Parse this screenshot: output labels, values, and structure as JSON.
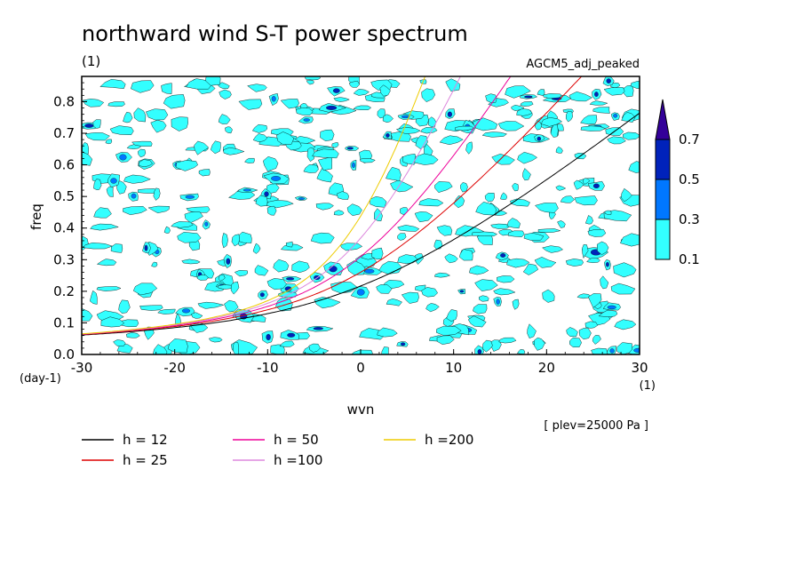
{
  "chart_data": {
    "type": "heatmap",
    "title": "northward wind S-T power spectrum",
    "title_unit": "(1)",
    "subtitle": "AGCM5_adj_peaked",
    "xlabel": "wvn",
    "x_unit": "(1)",
    "ylabel": "freq",
    "y_unit": "(day-1)",
    "xlim": [
      -30,
      30
    ],
    "ylim": [
      0,
      0.88
    ],
    "x_ticks": [
      -30,
      -20,
      -10,
      0,
      10,
      20,
      30
    ],
    "y_ticks": [
      0.0,
      0.1,
      0.2,
      0.3,
      0.4,
      0.5,
      0.6,
      0.7,
      0.8
    ],
    "y_tick_labels": [
      "0.0",
      "0.1",
      "0.2",
      "0.3",
      "0.4",
      "0.5",
      "0.6",
      "0.7",
      "0.8"
    ],
    "x_tick_labels": [
      "-30",
      "-20",
      "-10",
      "0",
      "10",
      "20",
      "30"
    ],
    "annotation": "[ plev=25000 Pa ]",
    "colorbar": {
      "levels": [
        0.1,
        0.3,
        0.5,
        0.7
      ],
      "labels": [
        "0.1",
        "0.3",
        "0.5",
        "0.7"
      ],
      "colors": [
        "#33ffff",
        "#0077ff",
        "#0022bb",
        "#330099"
      ]
    },
    "series": [
      {
        "name": "h = 12",
        "h": 12,
        "color": "#000000"
      },
      {
        "name": "h = 25",
        "h": 25,
        "color": "#dd0000"
      },
      {
        "name": "h = 50",
        "h": 50,
        "color": "#ee0099"
      },
      {
        "name": "h =100",
        "h": 100,
        "color": "#dd88dd"
      },
      {
        "name": "h =200",
        "h": 200,
        "color": "#eecc00"
      }
    ],
    "grid": false,
    "legend_position": "bottom"
  }
}
